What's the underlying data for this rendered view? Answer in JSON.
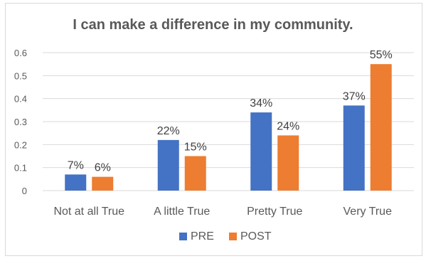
{
  "chart_data": {
    "type": "bar",
    "title": "I can make a difference in my community.",
    "categories": [
      "Not at all True",
      "A little True",
      "Pretty True",
      "Very True"
    ],
    "series": [
      {
        "name": "PRE",
        "values": [
          0.07,
          0.22,
          0.34,
          0.37
        ],
        "labels": [
          "7%",
          "22%",
          "34%",
          "37%"
        ],
        "color": "#4472C4"
      },
      {
        "name": "POST",
        "values": [
          0.06,
          0.15,
          0.24,
          0.55
        ],
        "labels": [
          "6%",
          "15%",
          "24%",
          "55%"
        ],
        "color": "#ED7D31"
      }
    ],
    "ylim": [
      0,
      0.6
    ],
    "yticks": [
      "0",
      "0.1",
      "0.2",
      "0.3",
      "0.4",
      "0.5",
      "0.6"
    ],
    "yticks_values": [
      0,
      0.1,
      0.2,
      0.3,
      0.4,
      0.5,
      0.6
    ],
    "grid": true,
    "legend_position": "bottom",
    "gridline_color": "#d9d9d9"
  }
}
